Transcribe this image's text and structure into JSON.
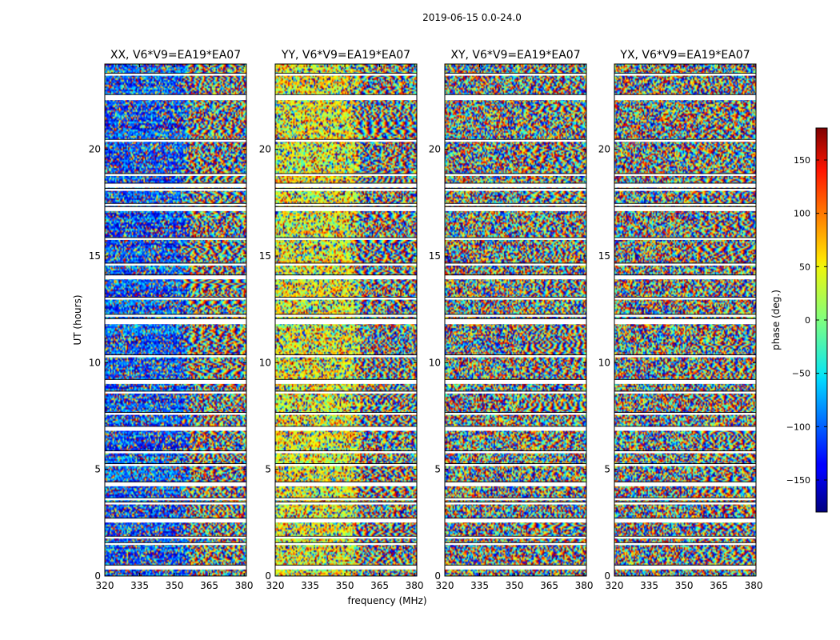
{
  "chart_data": {
    "type": "heatmap",
    "title": "2019-06-15 0.0-24.0",
    "xlabel": "frequency (MHz)",
    "ylabel": "UT (hours)",
    "xlim": [
      320,
      381
    ],
    "ylim": [
      0,
      24
    ],
    "x_ticks": [
      320,
      335,
      350,
      365,
      380
    ],
    "y_ticks": [
      0,
      5,
      10,
      15,
      20
    ],
    "panels": [
      {
        "title": "XX, V6*V9=EA19*EA07",
        "pol": "XX",
        "bias": -110
      },
      {
        "title": "YY, V6*V9=EA19*EA07",
        "pol": "YY",
        "bias": 40
      },
      {
        "title": "XY, V6*V9=EA19*EA07",
        "pol": "XY",
        "bias": 0
      },
      {
        "title": "YX, V6*V9=EA19*EA07",
        "pol": "YX",
        "bias": 0
      }
    ],
    "colorbar": {
      "label": "phase (deg.)",
      "range": [
        -180,
        180
      ],
      "ticks": [
        150,
        100,
        50,
        0,
        -50,
        -100,
        -150
      ],
      "tick_labels": [
        "150",
        "100",
        "50",
        "0",
        "−50",
        "−100",
        "−150"
      ],
      "colormap": "jet"
    },
    "flagged_ut_hours": [
      0.4,
      1.5,
      1.8,
      2.6,
      3.4,
      3.6,
      4.3,
      5.2,
      5.8,
      6.9,
      7.6,
      8.6,
      9.1,
      10.3,
      11.85,
      11.95,
      12.2,
      13.0,
      14.0,
      14.6,
      15.8,
      17.2,
      17.4,
      18.1,
      18.3,
      18.8,
      20.4,
      22.4,
      22.5,
      23.5
    ]
  }
}
